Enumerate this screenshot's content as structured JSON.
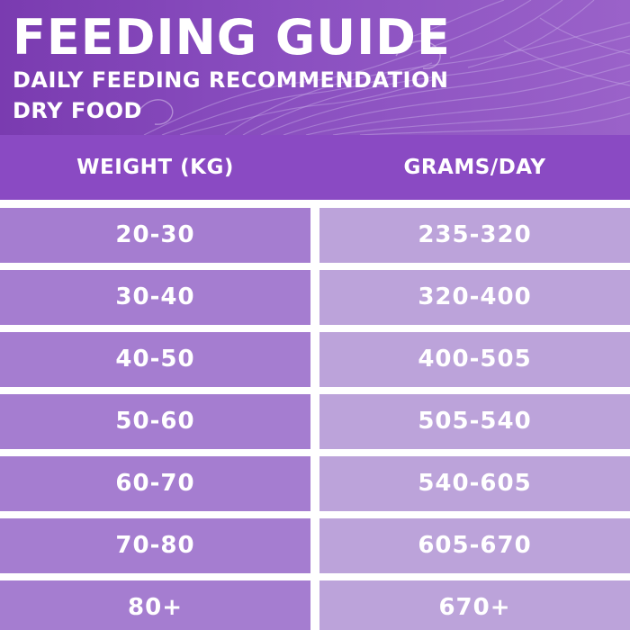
{
  "header": {
    "title": "FEEDING GUIDE",
    "subtitle": "DAILY FEEDING RECOMMENDATION",
    "food_type": "DRY FOOD"
  },
  "table": {
    "columns": [
      "WEIGHT (KG)",
      "GRAMS/DAY"
    ],
    "rows": [
      [
        "20-30",
        "235-320"
      ],
      [
        "30-40",
        "320-400"
      ],
      [
        "40-50",
        "400-505"
      ],
      [
        "50-60",
        "505-540"
      ],
      [
        "60-70",
        "540-605"
      ],
      [
        "70-80",
        "605-670"
      ],
      [
        "80+",
        "670+"
      ]
    ]
  },
  "colors": {
    "banner": "#7a3bb0",
    "header_bar": "#8a4ac3",
    "weight_cell": "#a57dd0",
    "grams_cell": "#bca3da",
    "text": "#ffffff"
  }
}
